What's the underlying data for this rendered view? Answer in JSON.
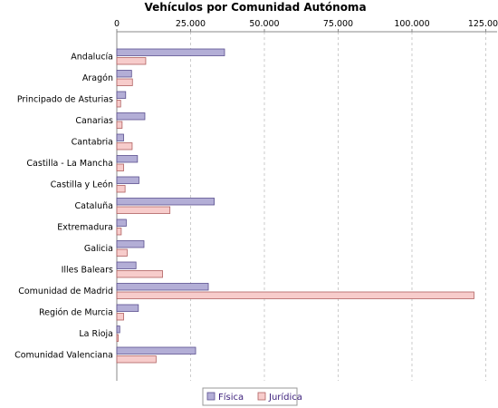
{
  "chart_data": {
    "type": "bar",
    "orientation": "horizontal",
    "title": "Vehículos por Comunidad Autónoma",
    "xlabel": "",
    "ylabel": "",
    "xlim": [
      0,
      127000
    ],
    "x_ticks": [
      0,
      25000,
      50000,
      75000,
      100000,
      125000
    ],
    "x_tick_labels": [
      "0",
      "25.000",
      "50.000",
      "75.000",
      "100.000",
      "125.000"
    ],
    "axis_position": "top",
    "grid": true,
    "legend_position": "bottom",
    "categories": [
      "Andalucía",
      "Aragón",
      "Principado de Asturias",
      "Canarias",
      "Cantabria",
      "Castilla - La Mancha",
      "Castilla y León",
      "Cataluña",
      "Extremadura",
      "Galicia",
      "Illes Balears",
      "Comunidad de Madrid",
      "Región de Murcia",
      "La Rioja",
      "Comunidad Valenciana"
    ],
    "series": [
      {
        "name": "Física",
        "color": "#b3aed6",
        "values": [
          36500,
          5000,
          3000,
          9500,
          2300,
          7000,
          7500,
          33000,
          3200,
          9200,
          6500,
          31000,
          7300,
          1000,
          26700
        ]
      },
      {
        "name": "Jurídica",
        "color": "#f7cccb",
        "values": [
          9800,
          5300,
          1300,
          1800,
          5200,
          2300,
          2800,
          18000,
          1500,
          3500,
          15500,
          121000,
          2300,
          500,
          13300
        ]
      }
    ]
  }
}
